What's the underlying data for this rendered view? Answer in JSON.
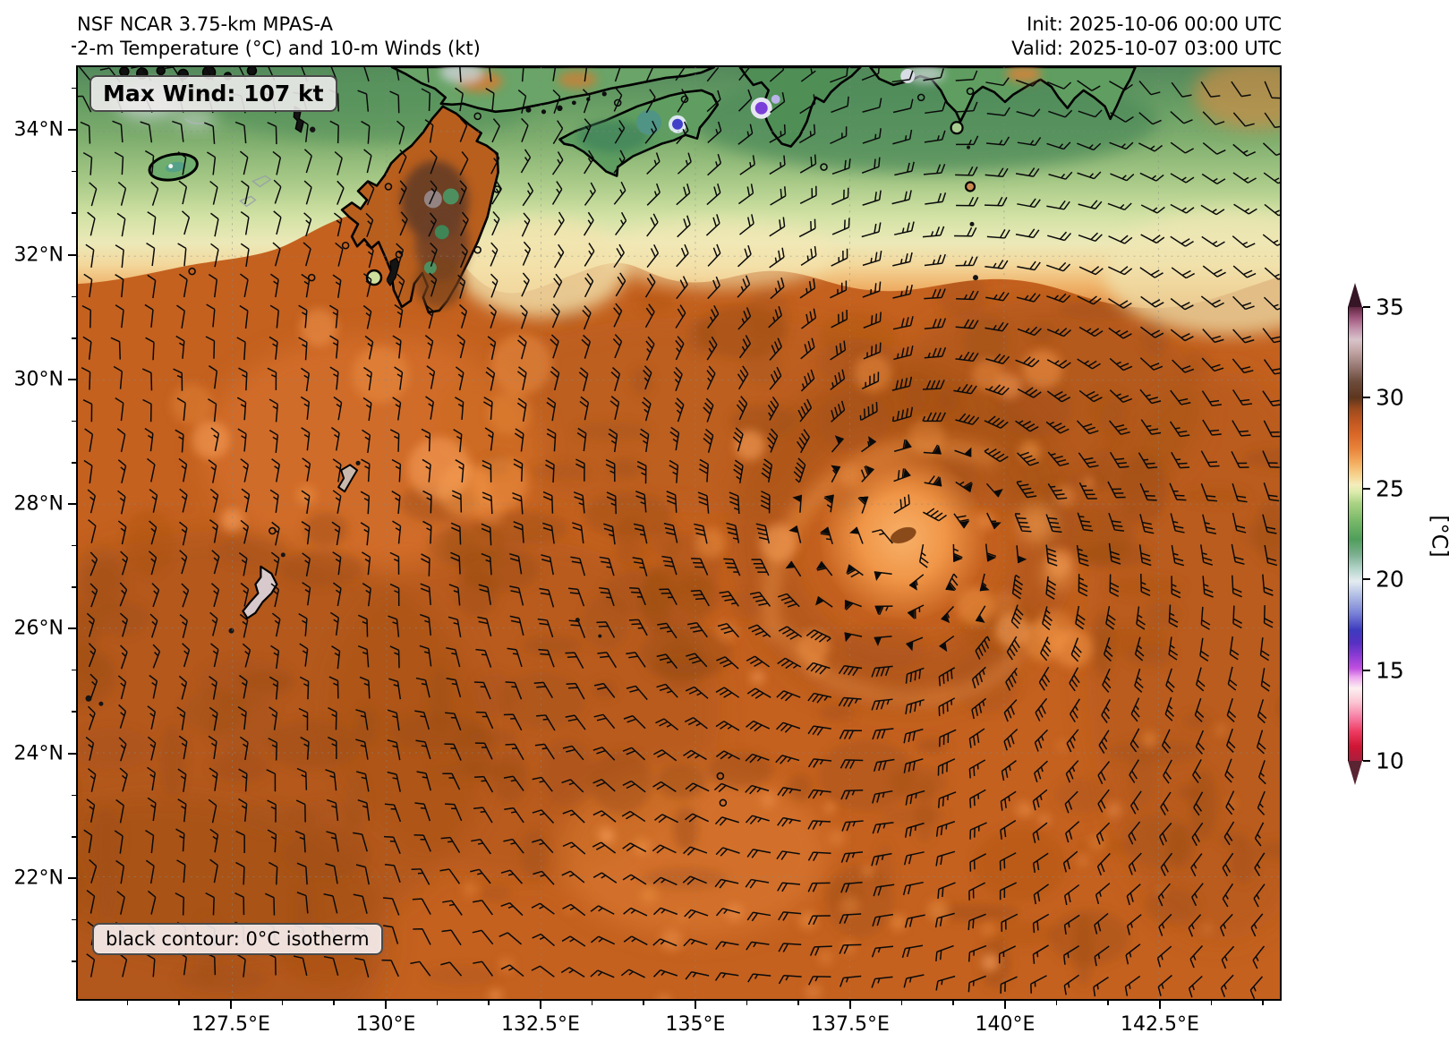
{
  "header": {
    "title_line1": "NSF NCAR 3.75-km MPAS-A",
    "title_line2": "2-m Temperature (°C) and 10-m Winds (kt)",
    "init_line": "Init: 2025-10-06 00:00 UTC",
    "valid_line": "Valid: 2025-10-07 03:00 UTC"
  },
  "annotations": {
    "max_wind_label": "Max Wind: 107 kt",
    "isotherm_label": "black contour: 0°C isotherm"
  },
  "axes": {
    "x_ticks": [
      "127.5°E",
      "130°E",
      "132.5°E",
      "135°E",
      "137.5°E",
      "140°E",
      "142.5°E"
    ],
    "y_ticks": [
      "34°N",
      "32°N",
      "30°N",
      "28°N",
      "26°N",
      "24°N",
      "22°N"
    ]
  },
  "colorbar": {
    "unit_label": "[°C]",
    "ticks": [
      "35",
      "30",
      "25",
      "20",
      "15",
      "10"
    ],
    "tick_values": [
      35,
      30,
      25,
      20,
      15,
      10
    ],
    "range": [
      10,
      35
    ],
    "extend": "both",
    "under_color": "#5a2433",
    "over_color": "#361526",
    "stops": [
      {
        "v": 10.0,
        "c": "#a81e3c"
      },
      {
        "v": 10.8,
        "c": "#cf1534"
      },
      {
        "v": 11.6,
        "c": "#ee3a60"
      },
      {
        "v": 12.4,
        "c": "#f77da4"
      },
      {
        "v": 13.2,
        "c": "#fbc3d2"
      },
      {
        "v": 14.0,
        "c": "#fdf0f2"
      },
      {
        "v": 14.6,
        "c": "#eda7ef"
      },
      {
        "v": 15.1,
        "c": "#c04fe0"
      },
      {
        "v": 15.8,
        "c": "#8b3bd4"
      },
      {
        "v": 16.5,
        "c": "#5630c2"
      },
      {
        "v": 17.2,
        "c": "#3d3bbf"
      },
      {
        "v": 18.2,
        "c": "#7d86d8"
      },
      {
        "v": 19.2,
        "c": "#b7c3e6"
      },
      {
        "v": 19.9,
        "c": "#e4ecf0"
      },
      {
        "v": 20.6,
        "c": "#b2d3c8"
      },
      {
        "v": 21.4,
        "c": "#79ae8d"
      },
      {
        "v": 22.2,
        "c": "#4f9e5b"
      },
      {
        "v": 23.2,
        "c": "#77b868"
      },
      {
        "v": 24.2,
        "c": "#abd384"
      },
      {
        "v": 24.8,
        "c": "#dcebac"
      },
      {
        "v": 25.2,
        "c": "#f4edbb"
      },
      {
        "v": 25.8,
        "c": "#f7d089"
      },
      {
        "v": 26.5,
        "c": "#f2a95b"
      },
      {
        "v": 27.2,
        "c": "#e8833a"
      },
      {
        "v": 28.0,
        "c": "#d96727"
      },
      {
        "v": 28.8,
        "c": "#bc5520"
      },
      {
        "v": 29.4,
        "c": "#9a4a1d"
      },
      {
        "v": 30.0,
        "c": "#5d351d"
      },
      {
        "v": 30.9,
        "c": "#6d4c3c"
      },
      {
        "v": 31.8,
        "c": "#9b7c77"
      },
      {
        "v": 32.6,
        "c": "#c4a7a7"
      },
      {
        "v": 33.2,
        "c": "#d9c3cb"
      },
      {
        "v": 33.8,
        "c": "#c291ab"
      },
      {
        "v": 34.4,
        "c": "#a1577d"
      },
      {
        "v": 35.0,
        "c": "#5f2640"
      }
    ]
  },
  "chart_data": {
    "type": "heatmap",
    "title": "NSF NCAR 3.75-km MPAS-A — 2-m Temperature (°C) and 10-m Winds (kt)",
    "model": "NSF NCAR 3.75-km MPAS-A",
    "fields": [
      "2-m temperature (°C, filled colors)",
      "10-m wind (kt, barbs)",
      "0°C isotherm (black contour)"
    ],
    "init_time": "2025-10-06 00:00 UTC",
    "valid_time": "2025-10-07 03:00 UTC",
    "max_wind_kt": 107,
    "x_axis": {
      "label": "longitude",
      "ticks": [
        "127.5°E",
        "130°E",
        "132.5°E",
        "135°E",
        "137.5°E",
        "140°E",
        "142.5°E"
      ],
      "range_deg_e": [
        125.0,
        144.5
      ]
    },
    "y_axis": {
      "label": "latitude",
      "ticks": [
        "34°N",
        "32°N",
        "30°N",
        "28°N",
        "26°N",
        "24°N",
        "22°N"
      ],
      "range_deg_n": [
        20.0,
        35.0
      ]
    },
    "colorbar": {
      "label": "[°C]",
      "ticks": [
        35,
        30,
        25,
        20,
        15,
        10
      ],
      "range": [
        10,
        35
      ],
      "extend": "both"
    },
    "grid": "faint dashed graticule at labeled ticks",
    "features": [
      {
        "name": "tropical-cyclone",
        "approx_position": "27.5°N 138.3°E",
        "description": "closed cyclonic (counterclockwise) wind circulation with warm ~28–29°C eye region; barbs with 50-kt pennants near the core; stated max wind 107 kt"
      },
      {
        "name": "warm-subtropical-ocean",
        "description": "broad 26–29°C (orange/brown mottled) 2-m temperatures south of Japan covering most of the domain"
      },
      {
        "name": "cooler-airmass-north",
        "description": "18–25°C band (green → yellow → pale orange) across Japan and the Korea Strait along the northern edge"
      },
      {
        "name": "cold-terrain-spots",
        "description": "isolated 10–17°C values (blue/purple/white) over high terrain of Kyushu, Shikoku, Kii Peninsula and central Honshu"
      },
      {
        "name": "trade-easterlies",
        "description": "10–20 kt east-northeast flow in the far southwest of the domain"
      },
      {
        "name": "calm-spots",
        "description": "small open circles (calm winds) over the Inland Sea area and a col south of the storm near 135°E"
      }
    ]
  }
}
